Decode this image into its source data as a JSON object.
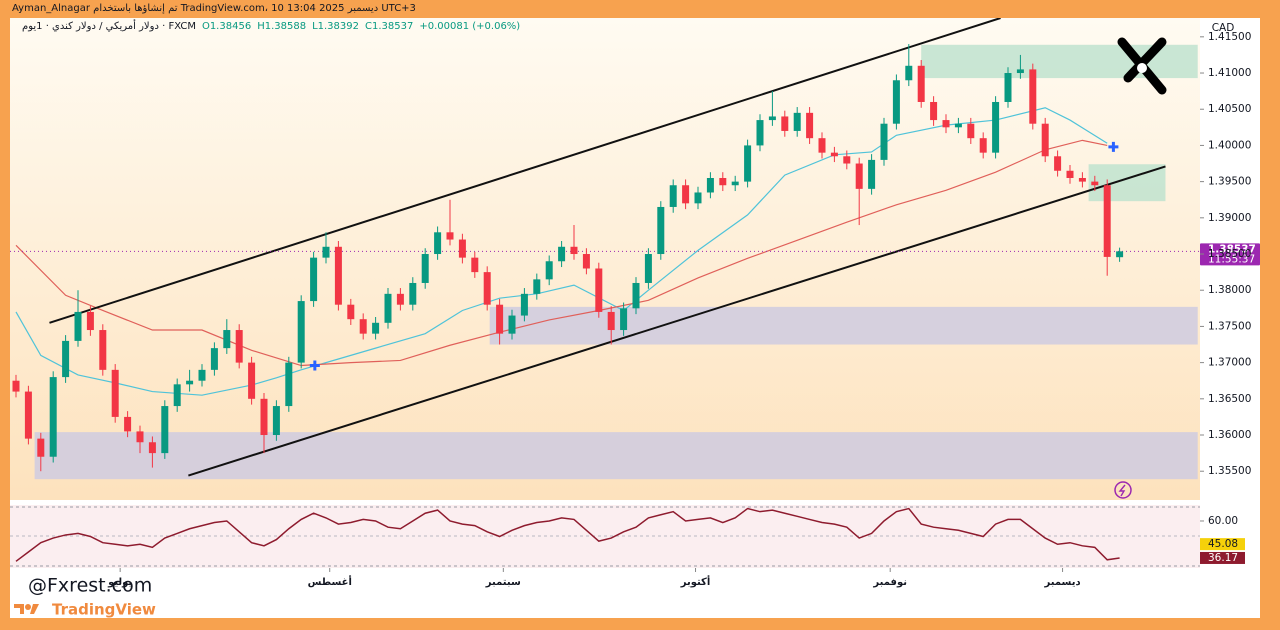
{
  "header": {
    "credit": "Ayman_Alnagar تم إنشاؤها باستخدام TradingView.com، 10 ديسمبر 2025 13:04 UTC+3"
  },
  "chart_data": {
    "type": "candlestick",
    "symbol": "دولار أمريكي / دولار كندي · 1يوم · FXCM",
    "legend_values": [
      "O1.38456",
      "H1.38588",
      "L1.38392",
      "C1.38537",
      "+0.00081 (+0.06%)"
    ],
    "currency": "CAD",
    "up_color": "#089981",
    "down_color": "#f23645",
    "open": [
      1.3675,
      1.366,
      1.3595,
      1.357,
      1.368,
      1.373,
      1.377,
      1.3745,
      1.369,
      1.3625,
      1.3605,
      1.359,
      1.3575,
      1.364,
      1.367,
      1.3675,
      1.369,
      1.372,
      1.3745,
      1.37,
      1.365,
      1.36,
      1.364,
      1.37,
      1.3785,
      1.3845,
      1.386,
      1.378,
      1.376,
      1.374,
      1.3755,
      1.3795,
      1.378,
      1.381,
      1.385,
      1.388,
      1.387,
      1.3845,
      1.3825,
      1.378,
      1.374,
      1.3765,
      1.3795,
      1.3815,
      1.384,
      1.386,
      1.385,
      1.383,
      1.377,
      1.3745,
      1.3775,
      1.381,
      1.385,
      1.3915,
      1.3945,
      1.392,
      1.3935,
      1.3955,
      1.3945,
      1.395,
      1.4,
      1.4035,
      1.404,
      1.402,
      1.4045,
      1.401,
      1.399,
      1.3985,
      1.3975,
      1.394,
      1.398,
      1.403,
      1.409,
      1.411,
      1.406,
      1.4035,
      1.4025,
      1.403,
      1.401,
      1.399,
      1.406,
      1.41,
      1.4105,
      1.403,
      1.3985,
      1.3965,
      1.3955,
      1.395,
      1.3945,
      1.38456
    ],
    "high": [
      1.3683,
      1.3668,
      1.3603,
      1.3688,
      1.3738,
      1.38,
      1.3778,
      1.3753,
      1.3698,
      1.3633,
      1.3613,
      1.3598,
      1.3648,
      1.3678,
      1.369,
      1.3698,
      1.3728,
      1.376,
      1.3753,
      1.3708,
      1.3658,
      1.3648,
      1.3708,
      1.3793,
      1.3853,
      1.388,
      1.3868,
      1.3788,
      1.3768,
      1.3763,
      1.3803,
      1.3803,
      1.3818,
      1.3858,
      1.3888,
      1.3925,
      1.3878,
      1.3853,
      1.3833,
      1.3788,
      1.3773,
      1.3803,
      1.3823,
      1.3848,
      1.3868,
      1.389,
      1.3858,
      1.3838,
      1.3778,
      1.3783,
      1.3818,
      1.3858,
      1.3923,
      1.3953,
      1.3953,
      1.3943,
      1.3963,
      1.3963,
      1.3958,
      1.4008,
      1.4043,
      1.4075,
      1.4048,
      1.4053,
      1.4053,
      1.4018,
      1.3998,
      1.3993,
      1.3983,
      1.3988,
      1.4038,
      1.4098,
      1.414,
      1.4118,
      1.4068,
      1.4043,
      1.4038,
      1.4038,
      1.4018,
      1.4068,
      1.4108,
      1.4125,
      1.4113,
      1.4038,
      1.3993,
      1.3973,
      1.3963,
      1.3958,
      1.3953,
      1.38588
    ],
    "low": [
      1.3652,
      1.3587,
      1.355,
      1.3562,
      1.3672,
      1.3722,
      1.3737,
      1.3682,
      1.3617,
      1.3597,
      1.3575,
      1.3555,
      1.3567,
      1.3632,
      1.366,
      1.3667,
      1.3682,
      1.3712,
      1.3692,
      1.3642,
      1.3575,
      1.3592,
      1.3632,
      1.3692,
      1.3777,
      1.3837,
      1.3772,
      1.3752,
      1.3732,
      1.3732,
      1.3747,
      1.3772,
      1.3772,
      1.3802,
      1.3842,
      1.3862,
      1.3837,
      1.3817,
      1.3772,
      1.3725,
      1.3732,
      1.3757,
      1.3787,
      1.3807,
      1.3832,
      1.3842,
      1.3822,
      1.3762,
      1.3725,
      1.3737,
      1.3767,
      1.3802,
      1.3842,
      1.3907,
      1.3912,
      1.3912,
      1.3927,
      1.3937,
      1.3937,
      1.3942,
      1.3992,
      1.4027,
      1.4012,
      1.4012,
      1.4002,
      1.3982,
      1.3977,
      1.3967,
      1.389,
      1.3932,
      1.3972,
      1.4022,
      1.4082,
      1.4052,
      1.4027,
      1.4017,
      1.4017,
      1.4002,
      1.3982,
      1.3982,
      1.4052,
      1.4092,
      1.4022,
      1.3977,
      1.3957,
      1.3947,
      1.3942,
      1.3937,
      1.382,
      1.38392
    ],
    "close": [
      1.366,
      1.3595,
      1.357,
      1.368,
      1.373,
      1.377,
      1.3745,
      1.369,
      1.3625,
      1.3605,
      1.359,
      1.3575,
      1.364,
      1.367,
      1.3675,
      1.369,
      1.372,
      1.3745,
      1.37,
      1.365,
      1.36,
      1.364,
      1.37,
      1.3785,
      1.3845,
      1.386,
      1.378,
      1.376,
      1.374,
      1.3755,
      1.3795,
      1.378,
      1.381,
      1.385,
      1.388,
      1.387,
      1.3845,
      1.3825,
      1.378,
      1.374,
      1.3765,
      1.3795,
      1.3815,
      1.384,
      1.386,
      1.385,
      1.383,
      1.377,
      1.3745,
      1.3775,
      1.381,
      1.385,
      1.3915,
      1.3945,
      1.392,
      1.3935,
      1.3955,
      1.3945,
      1.395,
      1.4,
      1.4035,
      1.404,
      1.402,
      1.4045,
      1.401,
      1.399,
      1.3985,
      1.3975,
      1.394,
      1.398,
      1.403,
      1.409,
      1.411,
      1.406,
      1.4035,
      1.4025,
      1.403,
      1.401,
      1.399,
      1.406,
      1.41,
      1.4105,
      1.403,
      1.3985,
      1.3965,
      1.3955,
      1.395,
      1.3945,
      1.3846,
      1.38537
    ],
    "ylim": [
      1.3513,
      1.4176
    ],
    "yticks": [
      {
        "value": 1.355,
        "label": "1.35500"
      },
      {
        "value": 1.36,
        "label": "1.36000"
      },
      {
        "value": 1.365,
        "label": "1.36500"
      },
      {
        "value": 1.37,
        "label": "1.37000"
      },
      {
        "value": 1.375,
        "label": "1.37500"
      },
      {
        "value": 1.38,
        "label": "1.38000"
      },
      {
        "value": 1.385,
        "label": "1.38500"
      },
      {
        "value": 1.39,
        "label": "1.39000"
      },
      {
        "value": 1.395,
        "label": "1.39500"
      },
      {
        "value": 1.4,
        "label": "1.40000"
      },
      {
        "value": 1.405,
        "label": "1.40500"
      },
      {
        "value": 1.41,
        "label": "1.41000"
      },
      {
        "value": 1.415,
        "label": "1.41500"
      }
    ],
    "xticks": [
      {
        "value": 8.4,
        "label": "يوليو"
      },
      {
        "value": 25.3,
        "label": "أغسطس"
      },
      {
        "value": 39.3,
        "label": "سبتمبر"
      },
      {
        "value": 54.8,
        "label": "أكتوبر"
      },
      {
        "value": 70.5,
        "label": "نوفمبر"
      },
      {
        "value": 84.4,
        "label": "ديسمبر"
      }
    ],
    "last_price": {
      "value": 1.38537,
      "label": "1.38537",
      "countdown": "11:55:37",
      "color": "#9c27b0"
    },
    "moving_averages": [
      {
        "color": "#4fc3d9",
        "x": [
          0,
          2,
          5,
          8,
          11,
          15,
          19,
          21,
          23,
          26,
          29,
          33,
          36,
          39,
          42,
          45,
          49,
          51,
          55,
          59,
          62,
          66,
          69,
          71,
          75,
          79,
          83,
          85,
          88
        ],
        "values": [
          1.377,
          1.371,
          1.3683,
          1.3672,
          1.366,
          1.3655,
          1.3669,
          1.3679,
          1.369,
          1.3705,
          1.372,
          1.374,
          1.3772,
          1.3789,
          1.3795,
          1.3807,
          1.3772,
          1.38,
          1.3855,
          1.3904,
          1.3959,
          1.3987,
          1.3991,
          1.4014,
          1.4028,
          1.4035,
          1.4052,
          1.4035,
          1.4003
        ]
      },
      {
        "color": "#e0605a",
        "x": [
          0,
          4,
          7,
          11,
          15,
          19,
          23,
          27,
          31,
          35,
          39,
          43,
          47,
          51,
          55,
          59,
          63,
          67,
          71,
          75,
          79,
          83,
          86,
          88
        ],
        "values": [
          1.3862,
          1.3793,
          1.3772,
          1.3745,
          1.3745,
          1.3717,
          1.3696,
          1.37,
          1.3703,
          1.3724,
          1.3742,
          1.3759,
          1.3772,
          1.3786,
          1.3817,
          1.3844,
          1.3869,
          1.3894,
          1.3918,
          1.3938,
          1.3963,
          1.3994,
          1.4007,
          1.4
        ]
      }
    ],
    "trendlines": [
      {
        "color": "#111111",
        "x": [
          2.7,
          79.4
        ],
        "values": [
          1.3755,
          1.4176
        ]
      },
      {
        "color": "#111111",
        "x": [
          13.9,
          92.7
        ],
        "values": [
          1.3544,
          1.3971
        ]
      }
    ],
    "zones": [
      {
        "color": "#bfe3cf",
        "x": [
          73.0,
          95.3
        ],
        "values": [
          1.4093,
          1.4139
        ]
      },
      {
        "color": "#bfe3cf",
        "x": [
          86.5,
          92.7
        ],
        "values": [
          1.3923,
          1.3974
        ]
      },
      {
        "color": "#cfcbe0",
        "x": [
          38.2,
          95.3
        ],
        "values": [
          1.3725,
          1.3777
        ]
      },
      {
        "color": "#cfcbe0",
        "x": [
          1.5,
          95.3
        ],
        "values": [
          1.3539,
          1.3604
        ]
      }
    ],
    "markers": [
      {
        "color": "#2962ff",
        "x": 24.1,
        "value": 1.3696
      },
      {
        "color": "#2962ff",
        "x": 88.5,
        "value": 1.3998
      }
    ],
    "rsi": {
      "color": "#8e1b2e",
      "values": [
        34,
        40,
        46,
        49,
        51,
        52,
        50,
        46,
        45,
        44,
        45,
        43,
        49,
        52,
        55,
        57,
        59,
        60,
        53,
        46,
        44,
        48,
        55,
        61,
        65,
        62,
        58,
        59,
        61,
        60,
        56,
        55,
        60,
        65,
        67,
        60,
        58,
        57,
        53,
        50,
        54,
        57,
        59,
        60,
        62,
        61,
        54,
        47,
        49,
        53,
        56,
        62,
        64,
        66,
        60,
        61,
        62,
        59,
        62,
        68,
        66,
        67,
        65,
        63,
        61,
        59,
        58,
        56,
        49,
        52,
        60,
        66,
        68,
        58,
        56,
        55,
        54,
        52,
        50,
        58,
        61,
        61,
        55,
        49,
        45,
        46,
        44,
        43,
        35,
        36.17
      ],
      "ylim": [
        29.7,
        70.3
      ],
      "yticks": [
        {
          "value": 60,
          "label": "60.00"
        }
      ],
      "value_label": "36.17",
      "ma": {
        "value": 45.08,
        "label": "45.08",
        "color": "#f5d10a"
      }
    }
  },
  "watermark": {
    "site": "@Fxrest.com",
    "brand": "TradingView"
  }
}
